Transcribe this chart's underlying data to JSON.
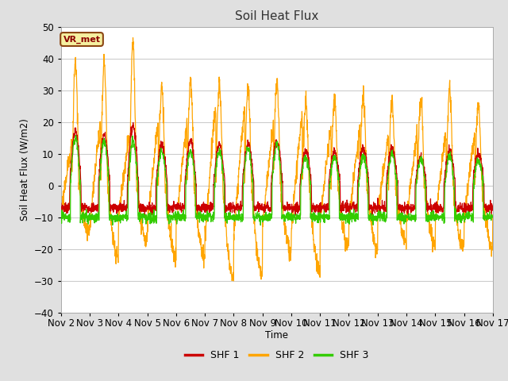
{
  "title": "Soil Heat Flux",
  "ylabel": "Soil Heat Flux (W/m2)",
  "xlabel": "Time",
  "legend_label": "VR_met",
  "series_labels": [
    "SHF 1",
    "SHF 2",
    "SHF 3"
  ],
  "series_colors": [
    "#cc0000",
    "#ffa500",
    "#33cc00"
  ],
  "ylim": [
    -40,
    50
  ],
  "fig_bg_color": "#e0e0e0",
  "plot_bg_color": "#ffffff",
  "grid_color": "#cccccc",
  "n_days": 15,
  "points_per_day": 144,
  "day_peak_amps_shf2": [
    38,
    38,
    44,
    31,
    33,
    32,
    30,
    33,
    26,
    27,
    28,
    27,
    26,
    30,
    25
  ],
  "day_neg_amps_shf2": [
    17,
    26,
    20,
    25,
    25,
    33,
    32,
    24,
    30,
    22,
    22,
    20,
    21,
    22,
    22
  ],
  "day_peak_amps_shf1": [
    17,
    16,
    19,
    13,
    14,
    13,
    13,
    14,
    11,
    11,
    12,
    12,
    9,
    11,
    10
  ],
  "day_peak_amps_shf3": [
    15,
    14,
    14,
    11,
    11,
    11,
    12,
    13,
    9,
    9,
    9,
    10,
    8,
    9,
    8
  ]
}
